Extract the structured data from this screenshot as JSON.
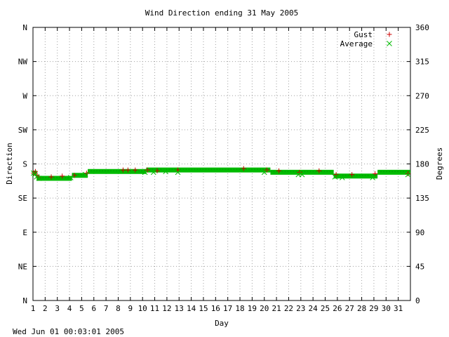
{
  "chart_data": {
    "type": "scatter",
    "title": "Wind Direction ending 31 May 2005",
    "xlabel": "Day",
    "ylabel_left": "Direction",
    "ylabel_right": "Degrees",
    "footer": "Wed Jun 01 00:03:01 2005",
    "xlim": [
      1,
      32
    ],
    "ylim": [
      0,
      360
    ],
    "x_ticks": [
      1,
      2,
      3,
      4,
      5,
      6,
      7,
      8,
      9,
      10,
      11,
      12,
      13,
      14,
      15,
      16,
      17,
      18,
      19,
      20,
      21,
      22,
      23,
      24,
      25,
      26,
      27,
      28,
      29,
      30,
      31
    ],
    "y_ticks_left": [
      {
        "value": 0,
        "label": "N"
      },
      {
        "value": 45,
        "label": "NE"
      },
      {
        "value": 90,
        "label": "E"
      },
      {
        "value": 135,
        "label": "SE"
      },
      {
        "value": 180,
        "label": "S"
      },
      {
        "value": 225,
        "label": "SW"
      },
      {
        "value": 270,
        "label": "W"
      },
      {
        "value": 315,
        "label": "NW"
      },
      {
        "value": 360,
        "label": "N"
      }
    ],
    "y_ticks_right": [
      0,
      45,
      90,
      135,
      180,
      225,
      270,
      315,
      360
    ],
    "grid": true,
    "legend_position": "top-right",
    "series": [
      {
        "name": "Gust",
        "marker": "plus",
        "color": "#cc0000",
        "points": [
          [
            1.05,
            168
          ],
          [
            1.2,
            170
          ],
          [
            1.35,
            165
          ],
          [
            1.45,
            162
          ],
          [
            2.5,
            163
          ],
          [
            3.4,
            164
          ],
          [
            4.4,
            165
          ],
          [
            5.4,
            168
          ],
          [
            8.4,
            172
          ],
          [
            8.8,
            172
          ],
          [
            9.4,
            172
          ],
          [
            10.4,
            172
          ],
          [
            11.2,
            171
          ],
          [
            12.9,
            172
          ],
          [
            18.3,
            174
          ],
          [
            20.2,
            172
          ],
          [
            21.2,
            171
          ],
          [
            22.9,
            169
          ],
          [
            24.5,
            171
          ],
          [
            25.9,
            166
          ],
          [
            27.2,
            166
          ],
          [
            29.1,
            167
          ],
          [
            31.8,
            167
          ]
        ]
      },
      {
        "name": "Average",
        "marker": "cross",
        "color": "#00bb00",
        "points": [
          [
            1.05,
            168
          ],
          [
            1.15,
            166
          ],
          [
            1.3,
            163
          ],
          [
            1.5,
            161
          ],
          [
            4.1,
            162
          ],
          [
            5.3,
            166
          ],
          [
            10.2,
            169
          ],
          [
            10.9,
            169
          ],
          [
            11.9,
            170
          ],
          [
            12.9,
            169
          ],
          [
            20.0,
            169
          ],
          [
            22.8,
            166
          ],
          [
            23.1,
            166
          ],
          [
            25.8,
            163
          ],
          [
            26.4,
            162
          ],
          [
            28.9,
            162
          ],
          [
            31.8,
            166
          ]
        ]
      },
      {
        "name": "",
        "marker": "cross",
        "color": "#00bb00",
        "segments": [
          {
            "x": [
              1.0,
              1.3
            ],
            "y": 168
          },
          {
            "x": [
              1.3,
              4.2
            ],
            "y": 161
          },
          {
            "x": [
              4.2,
              5.5
            ],
            "y": 165
          },
          {
            "x": [
              5.5,
              10.3
            ],
            "y": 170
          },
          {
            "x": [
              10.3,
              18.0
            ],
            "y": 172
          },
          {
            "x": [
              18.0,
              20.5
            ],
            "y": 172
          },
          {
            "x": [
              20.5,
              25.7
            ],
            "y": 169
          },
          {
            "x": [
              25.7,
              29.3
            ],
            "y": 164
          },
          {
            "x": [
              29.3,
              32.0
            ],
            "y": 169
          }
        ]
      }
    ]
  }
}
